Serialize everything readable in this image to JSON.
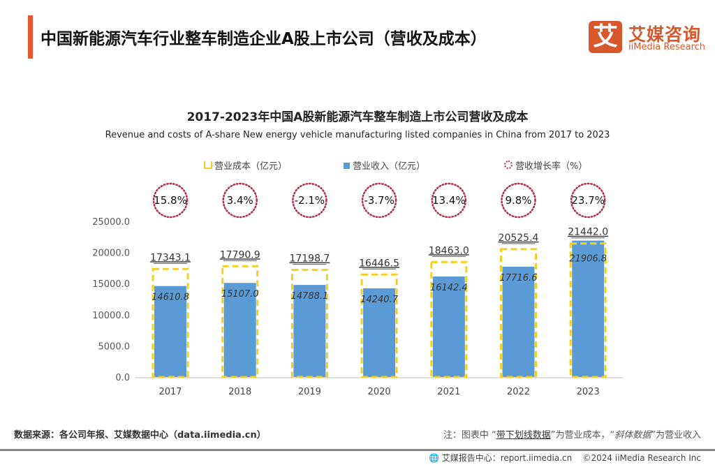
{
  "header": {
    "title": "中国新能源汽车行业整车制造企业A股上市公司（营收及成本）"
  },
  "logo": {
    "mark": "艾",
    "name_cn": "艾媒咨询",
    "name_en": "iiMedia Research"
  },
  "colors": {
    "accent": "#e8562e",
    "revenue": "#5b9bd5",
    "cost": "#f5cf24",
    "growth": "#b0304a"
  },
  "chart_data": {
    "type": "bar",
    "title": "2017-2023年中国A股新能源汽车整车制造上市公司营收及成本",
    "subtitle": "Revenue and costs of A-share New energy vehicle manufacturing listed companies in China from 2017 to 2023",
    "categories": [
      "2017",
      "2018",
      "2019",
      "2020",
      "2021",
      "2022",
      "2023"
    ],
    "series": [
      {
        "name": "营业成本（亿元）",
        "style": "dashed-outline",
        "values": [
          17343.1,
          17790.9,
          17198.7,
          16446.5,
          18463.0,
          20525.4,
          21442.0
        ],
        "labels": [
          "17343.1",
          "17790.9",
          "17198.7",
          "16446.5",
          "18463.0",
          "20525.4",
          "21442.0"
        ]
      },
      {
        "name": "营业收入（亿元）",
        "style": "filled",
        "values": [
          14610.8,
          15107.0,
          14788.1,
          14240.7,
          16142.4,
          17716.6,
          21906.8
        ],
        "labels": [
          "14610.8",
          "15107.0",
          "14788.1",
          "14240.7",
          "16142.4",
          "17716.6",
          "21906.8"
        ]
      },
      {
        "name": "营收增长率（%）",
        "style": "dotted-circle",
        "values": [
          15.8,
          3.4,
          -2.1,
          -3.7,
          13.4,
          9.8,
          23.7
        ],
        "labels": [
          "15.8%",
          "3.4%",
          "-2.1%",
          "-3.7%",
          "13.4%",
          "9.8%",
          "23.7%"
        ]
      }
    ],
    "yticks": [
      "0.0",
      "5000.0",
      "10000.0",
      "15000.0",
      "20000.0",
      "25000.0"
    ],
    "ylim": [
      0,
      25000
    ],
    "grid": false,
    "legend": "top"
  },
  "footer": {
    "source": "数据来源：各公司年报、艾媒数据中心（data.iimedia.cn）",
    "note_prefix": "注：图表中 “",
    "note_underline": "带下划线数据",
    "note_mid": "”为营业成本，“",
    "note_italic": "斜体数据",
    "note_suffix": "”为营业收入",
    "report": "艾媒报告中心：report.iimedia.cn",
    "copyright": "©2024  iiMedia Research  Inc"
  }
}
